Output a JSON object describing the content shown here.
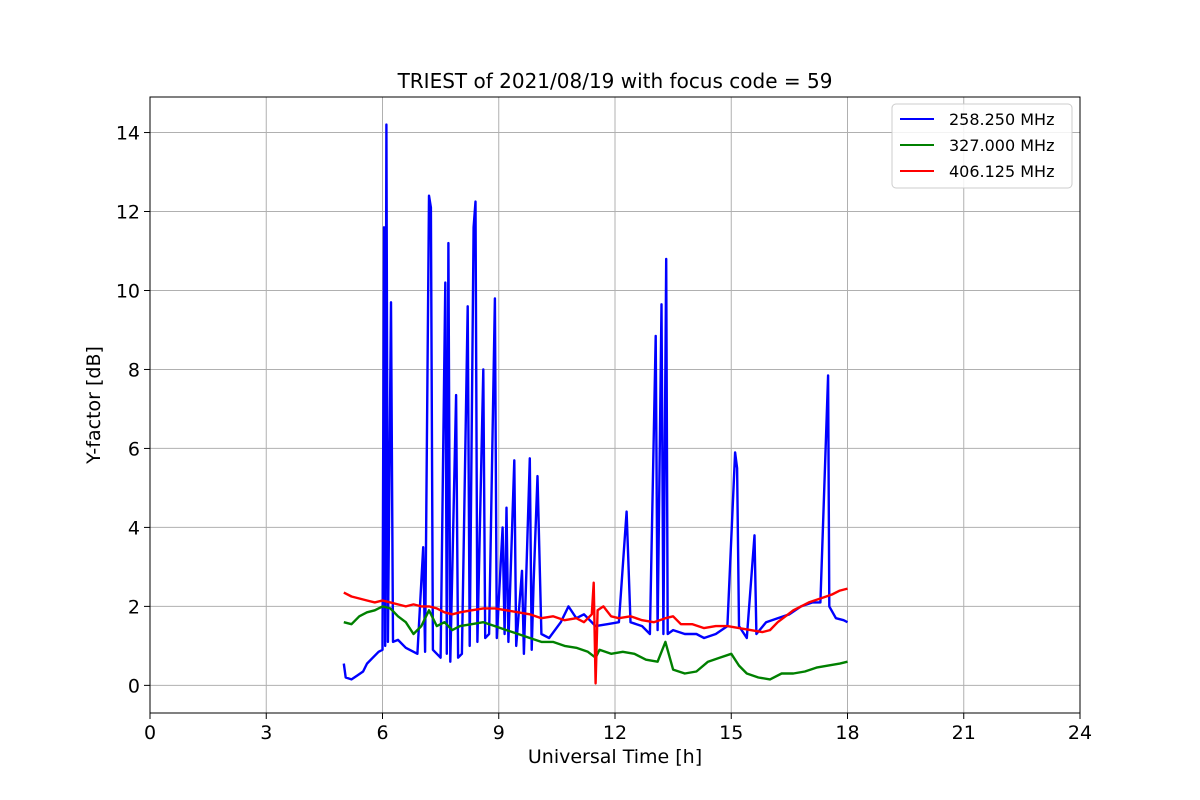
{
  "chart_data": {
    "type": "line",
    "title": "TRIEST of 2021/08/19 with focus code = 59",
    "xlabel": "Universal Time [h]",
    "ylabel": "Y-factor [dB]",
    "xlim": [
      0,
      24
    ],
    "ylim": [
      -0.7,
      14.9
    ],
    "xticks": [
      0,
      3,
      6,
      9,
      12,
      15,
      18,
      21,
      24
    ],
    "yticks": [
      0,
      2,
      4,
      6,
      8,
      10,
      12,
      14
    ],
    "grid": true,
    "legend_position": "top-right",
    "series": [
      {
        "name": "258.250 MHz",
        "color": "#0000ff",
        "points": [
          [
            5.0,
            0.55
          ],
          [
            5.05,
            0.2
          ],
          [
            5.2,
            0.15
          ],
          [
            5.35,
            0.25
          ],
          [
            5.5,
            0.35
          ],
          [
            5.6,
            0.55
          ],
          [
            5.75,
            0.7
          ],
          [
            5.9,
            0.85
          ],
          [
            6.0,
            0.9
          ],
          [
            6.04,
            11.6
          ],
          [
            6.07,
            1.0
          ],
          [
            6.1,
            14.2
          ],
          [
            6.14,
            1.1
          ],
          [
            6.22,
            9.7
          ],
          [
            6.27,
            1.1
          ],
          [
            6.4,
            1.15
          ],
          [
            6.6,
            0.95
          ],
          [
            6.9,
            0.8
          ],
          [
            7.05,
            3.5
          ],
          [
            7.1,
            0.85
          ],
          [
            7.2,
            12.4
          ],
          [
            7.25,
            12.1
          ],
          [
            7.3,
            0.9
          ],
          [
            7.5,
            0.7
          ],
          [
            7.62,
            10.2
          ],
          [
            7.66,
            0.8
          ],
          [
            7.7,
            11.2
          ],
          [
            7.75,
            0.6
          ],
          [
            7.9,
            7.35
          ],
          [
            7.95,
            0.7
          ],
          [
            8.05,
            0.8
          ],
          [
            8.2,
            9.6
          ],
          [
            8.25,
            1.0
          ],
          [
            8.35,
            11.6
          ],
          [
            8.4,
            12.25
          ],
          [
            8.45,
            1.1
          ],
          [
            8.6,
            8.0
          ],
          [
            8.65,
            1.2
          ],
          [
            8.75,
            1.3
          ],
          [
            8.9,
            9.8
          ],
          [
            8.95,
            1.2
          ],
          [
            9.1,
            4.0
          ],
          [
            9.15,
            1.3
          ],
          [
            9.2,
            4.5
          ],
          [
            9.25,
            1.1
          ],
          [
            9.4,
            5.7
          ],
          [
            9.45,
            1.0
          ],
          [
            9.6,
            2.9
          ],
          [
            9.65,
            0.8
          ],
          [
            9.8,
            5.75
          ],
          [
            9.85,
            0.9
          ],
          [
            9.9,
            2.6
          ],
          [
            10.0,
            5.3
          ],
          [
            10.1,
            1.3
          ],
          [
            10.3,
            1.2
          ],
          [
            10.6,
            1.6
          ],
          [
            10.8,
            2.0
          ],
          [
            11.0,
            1.7
          ],
          [
            11.2,
            1.8
          ],
          [
            11.5,
            1.5
          ],
          [
            11.8,
            1.55
          ],
          [
            12.1,
            1.6
          ],
          [
            12.3,
            4.4
          ],
          [
            12.4,
            1.6
          ],
          [
            12.7,
            1.5
          ],
          [
            12.9,
            1.3
          ],
          [
            13.05,
            8.85
          ],
          [
            13.1,
            1.4
          ],
          [
            13.2,
            9.65
          ],
          [
            13.25,
            1.3
          ],
          [
            13.32,
            10.8
          ],
          [
            13.36,
            1.3
          ],
          [
            13.5,
            1.4
          ],
          [
            13.8,
            1.3
          ],
          [
            14.1,
            1.3
          ],
          [
            14.3,
            1.2
          ],
          [
            14.6,
            1.3
          ],
          [
            14.9,
            1.5
          ],
          [
            15.1,
            5.9
          ],
          [
            15.15,
            5.5
          ],
          [
            15.2,
            1.5
          ],
          [
            15.4,
            1.2
          ],
          [
            15.6,
            3.8
          ],
          [
            15.65,
            1.3
          ],
          [
            15.9,
            1.6
          ],
          [
            16.2,
            1.7
          ],
          [
            16.5,
            1.8
          ],
          [
            16.8,
            2.0
          ],
          [
            17.1,
            2.1
          ],
          [
            17.3,
            2.1
          ],
          [
            17.5,
            7.85
          ],
          [
            17.53,
            2.0
          ],
          [
            17.7,
            1.7
          ],
          [
            17.9,
            1.65
          ],
          [
            18.0,
            1.6
          ]
        ]
      },
      {
        "name": "327.000 MHz",
        "color": "#008000",
        "points": [
          [
            5.0,
            1.6
          ],
          [
            5.2,
            1.55
          ],
          [
            5.4,
            1.75
          ],
          [
            5.6,
            1.85
          ],
          [
            5.8,
            1.9
          ],
          [
            6.0,
            2.0
          ],
          [
            6.2,
            1.95
          ],
          [
            6.4,
            1.75
          ],
          [
            6.6,
            1.6
          ],
          [
            6.8,
            1.3
          ],
          [
            7.0,
            1.5
          ],
          [
            7.2,
            1.9
          ],
          [
            7.4,
            1.5
          ],
          [
            7.6,
            1.6
          ],
          [
            7.8,
            1.4
          ],
          [
            8.0,
            1.5
          ],
          [
            8.3,
            1.55
          ],
          [
            8.6,
            1.6
          ],
          [
            8.9,
            1.5
          ],
          [
            9.2,
            1.4
          ],
          [
            9.5,
            1.3
          ],
          [
            9.8,
            1.2
          ],
          [
            10.1,
            1.1
          ],
          [
            10.4,
            1.1
          ],
          [
            10.7,
            1.0
          ],
          [
            11.0,
            0.95
          ],
          [
            11.3,
            0.85
          ],
          [
            11.5,
            0.7
          ],
          [
            11.6,
            0.9
          ],
          [
            11.9,
            0.8
          ],
          [
            12.2,
            0.85
          ],
          [
            12.5,
            0.8
          ],
          [
            12.8,
            0.65
          ],
          [
            13.1,
            0.6
          ],
          [
            13.3,
            1.1
          ],
          [
            13.5,
            0.4
          ],
          [
            13.8,
            0.3
          ],
          [
            14.1,
            0.35
          ],
          [
            14.4,
            0.6
          ],
          [
            14.7,
            0.7
          ],
          [
            15.0,
            0.8
          ],
          [
            15.2,
            0.5
          ],
          [
            15.4,
            0.3
          ],
          [
            15.7,
            0.2
          ],
          [
            16.0,
            0.15
          ],
          [
            16.3,
            0.3
          ],
          [
            16.6,
            0.3
          ],
          [
            16.9,
            0.35
          ],
          [
            17.2,
            0.45
          ],
          [
            17.5,
            0.5
          ],
          [
            17.8,
            0.55
          ],
          [
            18.0,
            0.6
          ]
        ]
      },
      {
        "name": "406.125 MHz",
        "color": "#ff0000",
        "points": [
          [
            5.0,
            2.35
          ],
          [
            5.2,
            2.25
          ],
          [
            5.4,
            2.2
          ],
          [
            5.6,
            2.15
          ],
          [
            5.8,
            2.1
          ],
          [
            6.0,
            2.15
          ],
          [
            6.2,
            2.1
          ],
          [
            6.4,
            2.05
          ],
          [
            6.6,
            2.0
          ],
          [
            6.8,
            2.05
          ],
          [
            7.0,
            2.0
          ],
          [
            7.2,
            2.0
          ],
          [
            7.4,
            1.95
          ],
          [
            7.6,
            1.85
          ],
          [
            7.8,
            1.8
          ],
          [
            8.0,
            1.85
          ],
          [
            8.3,
            1.9
          ],
          [
            8.6,
            1.95
          ],
          [
            8.9,
            1.95
          ],
          [
            9.2,
            1.9
          ],
          [
            9.5,
            1.85
          ],
          [
            9.8,
            1.8
          ],
          [
            10.1,
            1.7
          ],
          [
            10.4,
            1.75
          ],
          [
            10.7,
            1.65
          ],
          [
            11.0,
            1.7
          ],
          [
            11.2,
            1.6
          ],
          [
            11.4,
            1.8
          ],
          [
            11.45,
            2.6
          ],
          [
            11.5,
            0.05
          ],
          [
            11.55,
            1.9
          ],
          [
            11.7,
            2.0
          ],
          [
            11.9,
            1.75
          ],
          [
            12.1,
            1.7
          ],
          [
            12.4,
            1.75
          ],
          [
            12.7,
            1.65
          ],
          [
            13.0,
            1.6
          ],
          [
            13.3,
            1.7
          ],
          [
            13.5,
            1.75
          ],
          [
            13.7,
            1.55
          ],
          [
            14.0,
            1.55
          ],
          [
            14.3,
            1.45
          ],
          [
            14.6,
            1.5
          ],
          [
            14.9,
            1.5
          ],
          [
            15.2,
            1.45
          ],
          [
            15.5,
            1.4
          ],
          [
            15.8,
            1.35
          ],
          [
            16.0,
            1.4
          ],
          [
            16.2,
            1.6
          ],
          [
            16.4,
            1.75
          ],
          [
            16.6,
            1.9
          ],
          [
            16.8,
            2.0
          ],
          [
            17.0,
            2.1
          ],
          [
            17.3,
            2.2
          ],
          [
            17.6,
            2.3
          ],
          [
            17.8,
            2.4
          ],
          [
            18.0,
            2.45
          ]
        ]
      }
    ]
  }
}
